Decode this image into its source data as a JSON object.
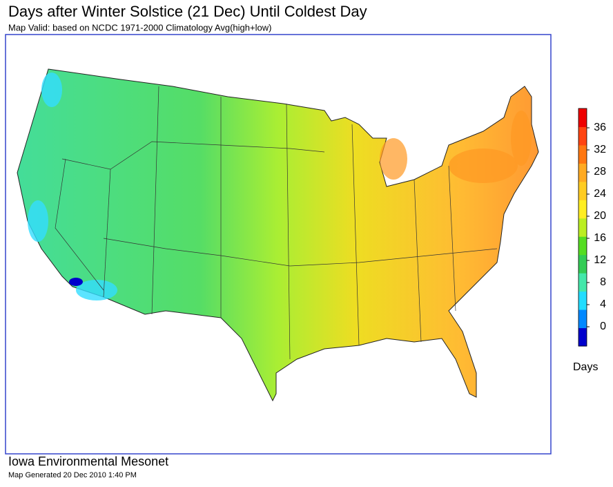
{
  "header": {
    "title": "Days after Winter Solstice (21 Dec) Until Coldest Day",
    "subtitle": "Map Valid: based on NCDC 1971-2000 Climatology Avg(high+low)"
  },
  "legend": {
    "label": "Days",
    "lim": [
      -3.5,
      39.5
    ],
    "ticks": [
      0,
      4,
      8,
      12,
      16,
      20,
      24,
      28,
      32,
      36
    ],
    "colors": [
      "#0000cc",
      "#0088ff",
      "#22ddff",
      "#44e8aa",
      "#33cc55",
      "#55dd22",
      "#bbee22",
      "#ffee22",
      "#ffcc22",
      "#ffaa22",
      "#ff7711",
      "#ff4411",
      "#ee0000"
    ]
  },
  "footer": {
    "org": "Iowa Environmental Mesonet",
    "generated": "Map Generated 20 Dec 2010 1:40 PM"
  }
}
